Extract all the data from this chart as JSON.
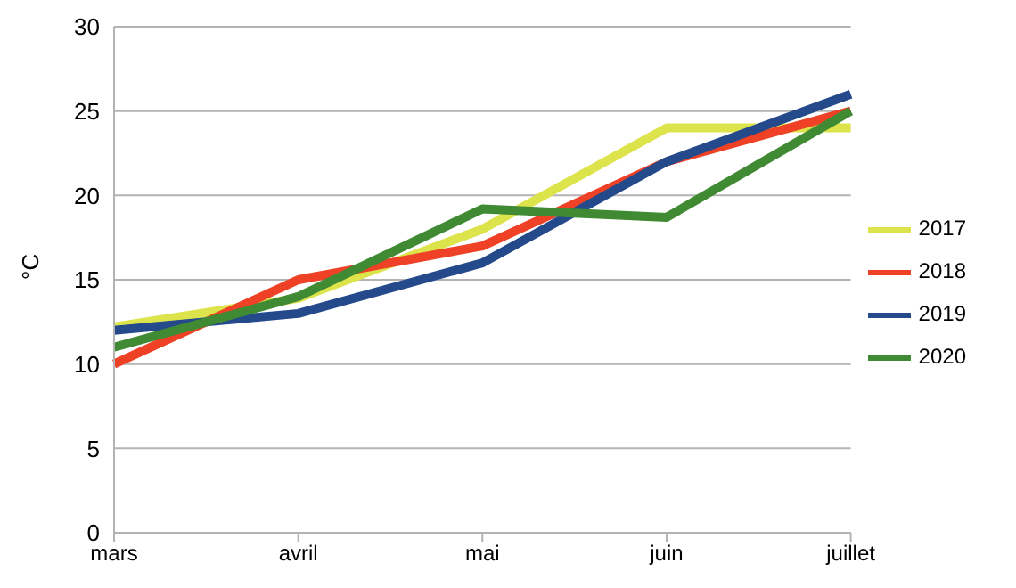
{
  "chart_data": {
    "type": "line",
    "ylabel": "°C",
    "categories": [
      "mars",
      "avril",
      "mai",
      "juin",
      "juillet"
    ],
    "series": [
      {
        "name": "2017",
        "color": "#dde34a",
        "values": [
          12.2,
          13.9,
          18,
          24,
          24
        ]
      },
      {
        "name": "2018",
        "color": "#ee4125",
        "values": [
          10,
          15,
          17,
          22,
          25
        ]
      },
      {
        "name": "2019",
        "color": "#254a8c",
        "values": [
          12,
          13,
          16,
          22,
          26
        ]
      },
      {
        "name": "2020",
        "color": "#3f8a32",
        "values": [
          11,
          14,
          19.2,
          18.7,
          25
        ]
      }
    ],
    "ylim": [
      0,
      30
    ],
    "yticks": [
      0,
      5,
      10,
      15,
      20,
      25,
      30
    ],
    "grid": "y",
    "legend": "right",
    "marker": "none",
    "line_style": "solid"
  }
}
